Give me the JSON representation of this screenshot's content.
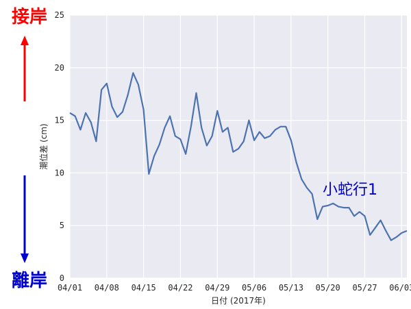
{
  "chart_data": {
    "type": "line",
    "xlabel": "日付 (2017年)",
    "ylabel": "潮位差 (cm)",
    "ylim": [
      0,
      25
    ],
    "xlim": [
      "2017-04-01",
      "2017-06-04"
    ],
    "grid": true,
    "y_ticks": [
      "0",
      "5",
      "10",
      "15",
      "20",
      "25"
    ],
    "x_ticks": [
      {
        "date": "2017-04-01",
        "label": "04/01"
      },
      {
        "date": "2017-04-08",
        "label": "04/08"
      },
      {
        "date": "2017-04-15",
        "label": "04/15"
      },
      {
        "date": "2017-04-22",
        "label": "04/22"
      },
      {
        "date": "2017-04-29",
        "label": "04/29"
      },
      {
        "date": "2017-05-06",
        "label": "05/06"
      },
      {
        "date": "2017-05-13",
        "label": "05/13"
      },
      {
        "date": "2017-05-20",
        "label": "05/20"
      },
      {
        "date": "2017-05-27",
        "label": "05/27"
      },
      {
        "date": "2017-06-03",
        "label": "06/03"
      }
    ],
    "series": [
      {
        "color": "#4c72b0",
        "x": [
          "2017-04-01",
          "2017-04-02",
          "2017-04-03",
          "2017-04-04",
          "2017-04-05",
          "2017-04-06",
          "2017-04-07",
          "2017-04-08",
          "2017-04-09",
          "2017-04-10",
          "2017-04-11",
          "2017-04-12",
          "2017-04-13",
          "2017-04-14",
          "2017-04-15",
          "2017-04-16",
          "2017-04-17",
          "2017-04-18",
          "2017-04-19",
          "2017-04-20",
          "2017-04-21",
          "2017-04-22",
          "2017-04-23",
          "2017-04-24",
          "2017-04-25",
          "2017-04-26",
          "2017-04-27",
          "2017-04-28",
          "2017-04-29",
          "2017-04-30",
          "2017-05-01",
          "2017-05-02",
          "2017-05-03",
          "2017-05-04",
          "2017-05-05",
          "2017-05-06",
          "2017-05-07",
          "2017-05-08",
          "2017-05-09",
          "2017-05-10",
          "2017-05-11",
          "2017-05-12",
          "2017-05-13",
          "2017-05-14",
          "2017-05-15",
          "2017-05-16",
          "2017-05-17",
          "2017-05-18",
          "2017-05-19",
          "2017-05-20",
          "2017-05-21",
          "2017-05-22",
          "2017-05-23",
          "2017-05-24",
          "2017-05-25",
          "2017-05-26",
          "2017-05-27",
          "2017-05-28",
          "2017-05-29",
          "2017-05-30",
          "2017-05-31",
          "2017-06-01",
          "2017-06-02",
          "2017-06-03",
          "2017-06-04"
        ],
        "values": [
          15.7,
          15.4,
          14.1,
          15.7,
          14.8,
          13.0,
          17.9,
          18.5,
          16.3,
          15.3,
          15.8,
          17.4,
          19.5,
          18.4,
          16.0,
          9.9,
          11.6,
          12.7,
          14.3,
          15.4,
          13.5,
          13.2,
          11.8,
          14.4,
          17.6,
          14.3,
          12.6,
          13.5,
          15.9,
          13.9,
          14.3,
          12.0,
          12.3,
          13.0,
          15.0,
          13.1,
          13.9,
          13.3,
          13.5,
          14.1,
          14.4,
          14.4,
          13.1,
          11.0,
          9.4,
          8.6,
          8.0,
          5.6,
          6.8,
          6.9,
          7.1,
          6.8,
          6.7,
          6.7,
          5.9,
          6.3,
          5.9,
          4.1,
          4.8,
          5.5,
          4.5,
          3.6,
          3.9,
          4.3,
          4.5
        ]
      }
    ],
    "annotation": "小蛇行1"
  },
  "side_labels": {
    "top": "接岸",
    "top_color": "#ff0000",
    "bottom": "離岸",
    "bottom_color": "#0000cc",
    "annotation_color": "#0000cc"
  }
}
